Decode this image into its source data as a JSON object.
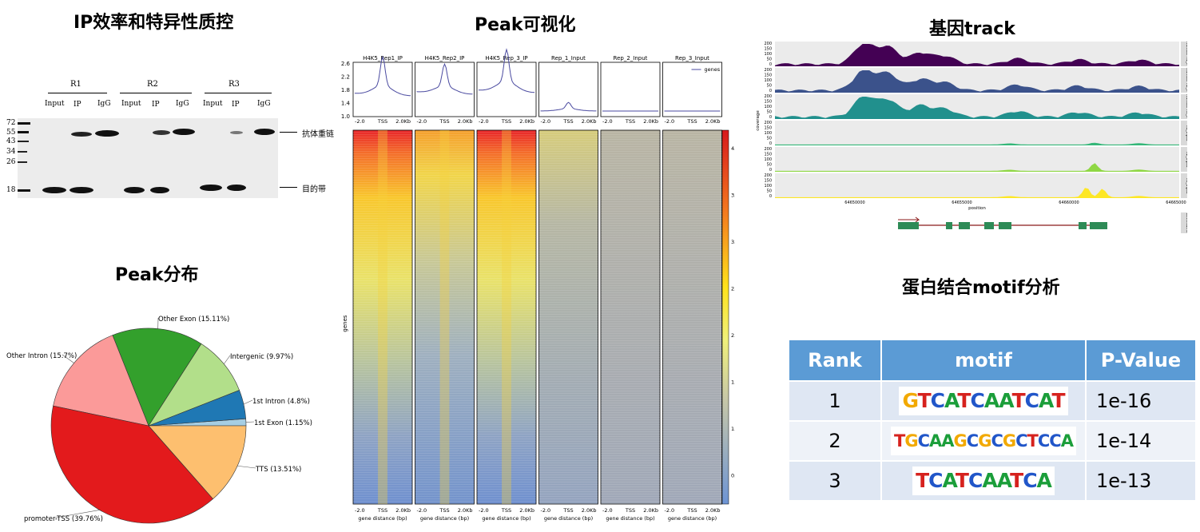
{
  "titles": {
    "ip": "IP效率和特异性质控",
    "peak_vis": "Peak可视化",
    "track": "基因track",
    "peak_dist": "Peak分布",
    "motif": "蛋白结合motif分析"
  },
  "blot": {
    "groups": [
      "R1",
      "R2",
      "R3"
    ],
    "lanes": [
      "Input",
      "IP",
      "IgG"
    ],
    "markers": [
      "72",
      "55",
      "43",
      "34",
      "26",
      "18"
    ],
    "label_heavy": "抗体重链",
    "label_target": "目的带"
  },
  "profile": {
    "panels": [
      "H4K5_Rep1_IP",
      "H4K5_Rep2_IP",
      "H4K5_Rep_3_IP",
      "Rep_1_Input",
      "Rep_2_Input",
      "Rep_3_Input"
    ],
    "yticks": [
      "2.6",
      "2.2",
      "1.8",
      "1.4",
      "1.0"
    ],
    "xticks": [
      "-2.0",
      "TSS",
      "2.0Kb"
    ],
    "legend": "genes",
    "ylabel": "genes",
    "xlabel": "gene distance (bp)",
    "colorbar_ticks": [
      "4.0",
      "3.5",
      "3.0",
      "2.5",
      "2.0",
      "1.5",
      "1.0",
      "0.5"
    ]
  },
  "track": {
    "ylabel": "coverage",
    "xlabel": "position",
    "yticks": [
      "200",
      "150",
      "100",
      "50",
      "0"
    ],
    "xticks": [
      "64650000",
      "64655000",
      "64660000",
      "64665000"
    ],
    "lanes": [
      "H4K5ac R1_IP",
      "H4K5ac R2_IP",
      "H4K5ac R3_IP",
      "R1_Input",
      "R2_Input",
      "R3_Input"
    ],
    "gene_label": "GeneName",
    "colors": [
      "#440154",
      "#3b528b",
      "#21908d",
      "#35b779",
      "#8fd744",
      "#fde725"
    ]
  },
  "motif_table": {
    "headers": [
      "Rank",
      "motif",
      "P-Value"
    ],
    "rows": [
      {
        "rank": "1",
        "motif": "GTCATCAATCAT",
        "pvalue": "1e-16"
      },
      {
        "rank": "2",
        "motif": "TGCAAGCGCGCTCCA",
        "pvalue": "1e-14"
      },
      {
        "rank": "3",
        "motif": "TCATCAATCA",
        "pvalue": "1e-13"
      }
    ]
  },
  "chart_data": {
    "type": "pie",
    "title": "",
    "slices": [
      {
        "label": "promoter-TSS (39.76%)",
        "value": 39.76,
        "color": "#e31a1c"
      },
      {
        "label": "TTS (13.51%)",
        "value": 13.51,
        "color": "#fdbf6f"
      },
      {
        "label": "1st Exon (1.15%)",
        "value": 1.15,
        "color": "#a6cee3"
      },
      {
        "label": "1st Intron (4.8%)",
        "value": 4.8,
        "color": "#1f78b4"
      },
      {
        "label": "Intergenic (9.97%)",
        "value": 9.97,
        "color": "#b2df8a"
      },
      {
        "label": "Other Exon (15.11%)",
        "value": 15.11,
        "color": "#33a02c"
      },
      {
        "label": "Other Intron (15.7%)",
        "value": 15.7,
        "color": "#fb9a99"
      }
    ]
  }
}
